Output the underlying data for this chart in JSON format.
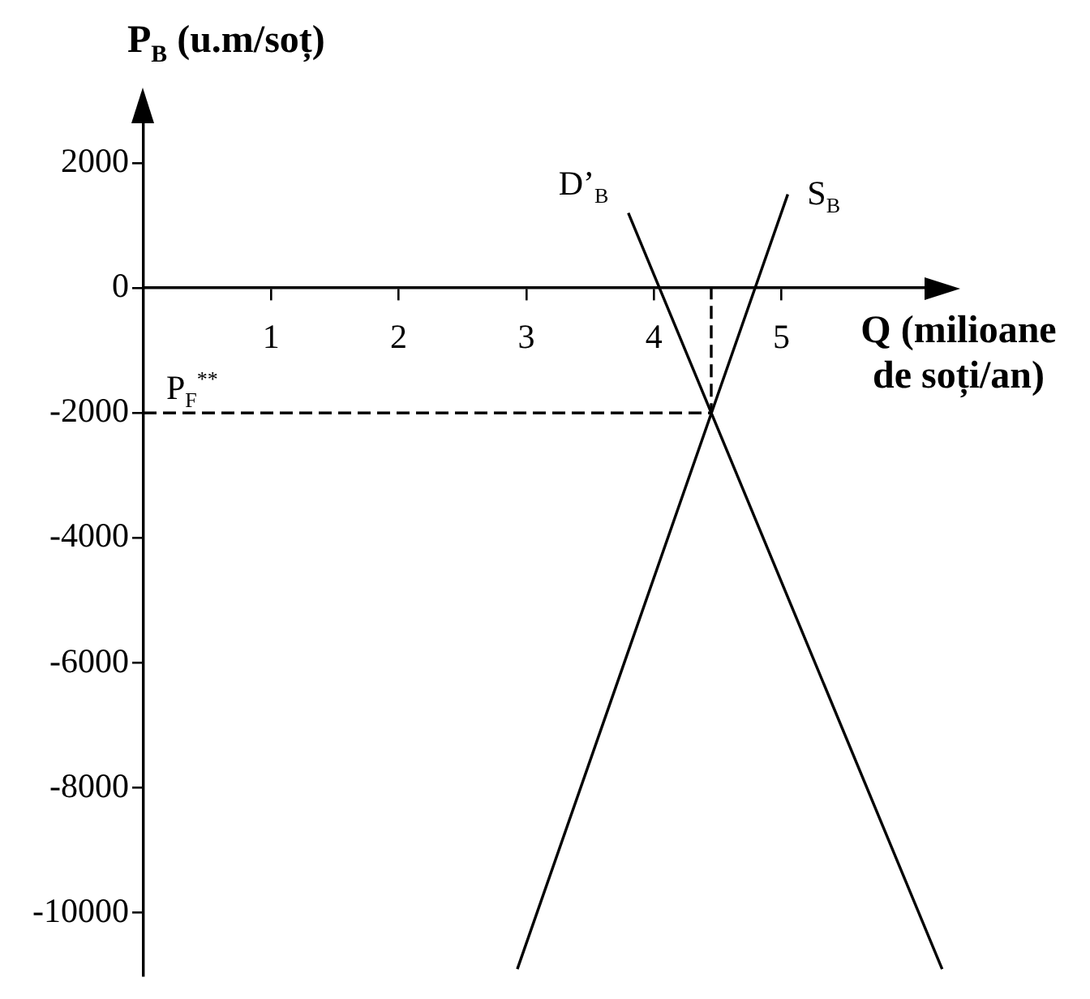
{
  "chart_data": {
    "type": "line",
    "xlabel": "Q (milioane de soți/an)",
    "ylabel": "P$_{B}$ (u.m/soț)",
    "series": [
      {
        "name": "D’$_{B}$",
        "color": "#000000",
        "x": [
          3.8,
          6.26
        ],
        "values": [
          1200,
          -10900
        ]
      },
      {
        "name": "S$_{B}$",
        "color": "#000000",
        "x": [
          2.93,
          5.05
        ],
        "values": [
          -10900,
          1500
        ]
      },
      {
        "color": "#000000",
        "x": [
          0,
          4.45,
          4.45
        ],
        "values": [
          -2000,
          -2000,
          0
        ],
        "line_style": "dashed"
      }
    ],
    "xlim": [
      0,
      6.3
    ],
    "xticks": [
      1,
      2,
      3,
      4,
      5
    ],
    "ylim": [
      -11000,
      3000
    ],
    "yticks": [
      2000,
      0,
      -2000,
      -4000,
      -6000,
      -8000,
      -10000
    ],
    "annotations": [
      {
        "text": "P$_{F}$$^{**}$",
        "x": 0,
        "y": -2000
      }
    ],
    "grid": false,
    "legend": false,
    "marker": "none",
    "line_style": "solid"
  }
}
